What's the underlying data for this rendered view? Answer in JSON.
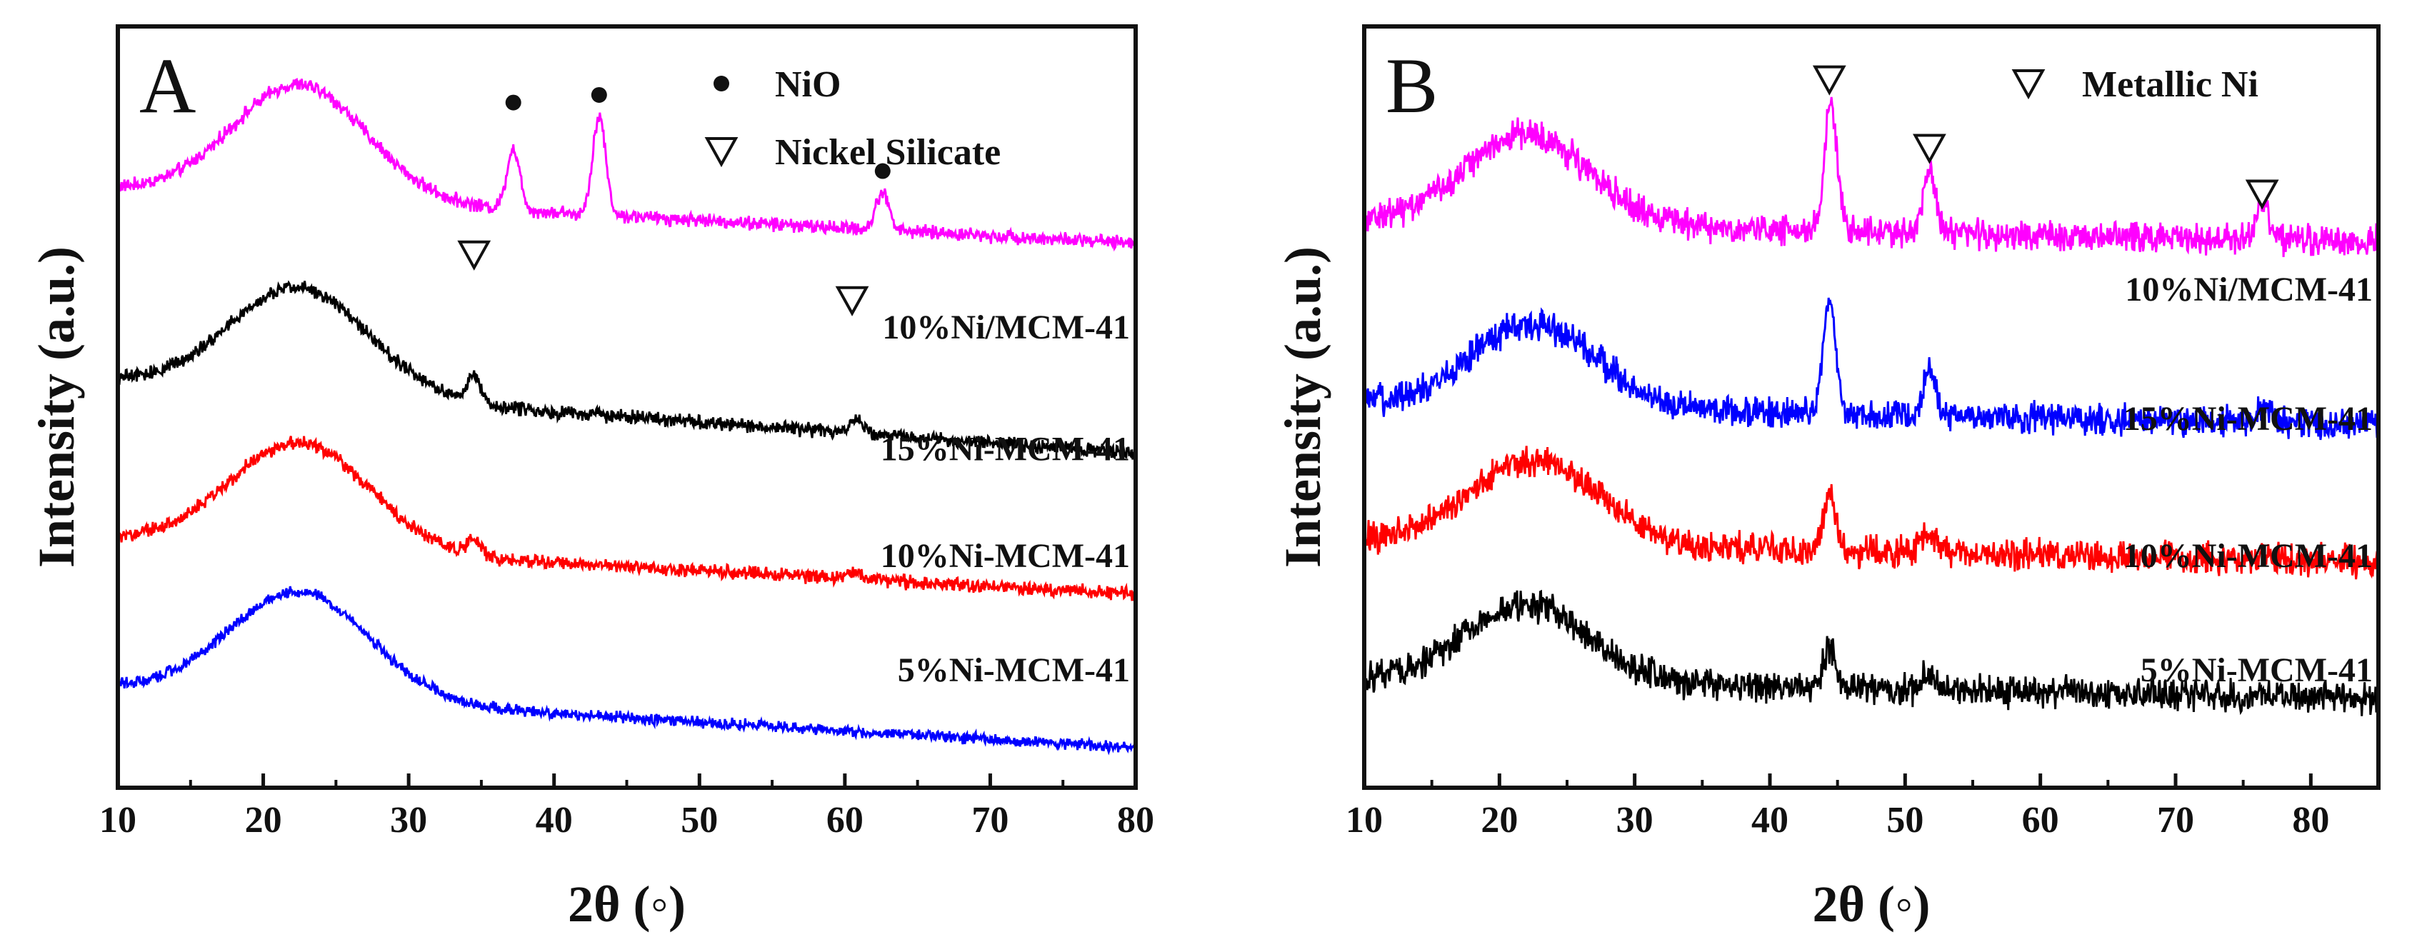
{
  "chart_data": [
    {
      "type": "line",
      "panel_label": "A",
      "xlabel": "2θ (◦)",
      "ylabel": "Intensity (a.u.)",
      "xlim": [
        10,
        80
      ],
      "ylim": [
        0,
        100
      ],
      "xticks": [
        10,
        20,
        30,
        40,
        50,
        60,
        70,
        80
      ],
      "yticks_shown": false,
      "grid": false,
      "legend": [
        {
          "marker": "dot",
          "label": "NiO"
        },
        {
          "marker": "triangle-down",
          "label": "Nickel Silicate"
        }
      ],
      "series": [
        {
          "name": "10%Ni/MCM-41",
          "color": "#ff00ff",
          "offset": 72,
          "baseline": 11,
          "hump": {
            "center": 22.5,
            "width": 4.6,
            "height": 15
          },
          "peaks": [
            {
              "x": 37.2,
              "h": 8
            },
            {
              "x": 43.1,
              "h": 13
            },
            {
              "x": 62.6,
              "h": 5
            }
          ],
          "tail": 0.5,
          "noise": 1.1
        },
        {
          "name": "15%Ni-MCM-41",
          "color": "#000000",
          "offset": 45,
          "baseline": 14,
          "hump": {
            "center": 22.5,
            "width": 4.8,
            "height": 14
          },
          "peaks": [
            {
              "x": 34.5,
              "h": 3.5
            },
            {
              "x": 60.8,
              "h": 2
            }
          ],
          "tail": 1.0,
          "noise": 1.1
        },
        {
          "name": "10%Ni-MCM-41",
          "color": "#ff0000",
          "offset": 26,
          "baseline": 11,
          "hump": {
            "center": 22.5,
            "width": 4.8,
            "height": 14
          },
          "peaks": [
            {
              "x": 34.5,
              "h": 2
            },
            {
              "x": 60.6,
              "h": 1
            }
          ],
          "tail": 0.6,
          "noise": 1.1
        },
        {
          "name": "5%Ni-MCM-41",
          "color": "#0000ff",
          "offset": 6,
          "baseline": 12,
          "hump": {
            "center": 22.5,
            "width": 4.8,
            "height": 14
          },
          "peaks": [],
          "tail": 0.8,
          "noise": 0.9
        }
      ],
      "annotations": [
        {
          "marker": "dot",
          "x": 37.2,
          "y": 90
        },
        {
          "marker": "dot",
          "x": 43.1,
          "y": 91
        },
        {
          "marker": "dot",
          "x": 62.6,
          "y": 81
        },
        {
          "marker": "triangle-down",
          "x": 34.5,
          "y": 70
        },
        {
          "marker": "triangle-down",
          "x": 60.5,
          "y": 64
        }
      ]
    },
    {
      "type": "line",
      "panel_label": "B",
      "xlabel": "2θ (◦)",
      "ylabel": "Intensity (a.u.)",
      "xlim": [
        10,
        85
      ],
      "ylim": [
        0,
        100
      ],
      "xticks": [
        10,
        20,
        30,
        40,
        50,
        60,
        70,
        80
      ],
      "yticks_shown": false,
      "grid": false,
      "legend": [
        {
          "marker": "triangle-down",
          "label": "Metallic Ni"
        }
      ],
      "series": [
        {
          "name": "10%Ni/MCM-41",
          "color": "#ff00ff",
          "offset": 72,
          "baseline": 4,
          "hump": {
            "center": 22,
            "width": 4.6,
            "height": 12
          },
          "peaks": [
            {
              "x": 44.5,
              "h": 17
            },
            {
              "x": 51.8,
              "h": 9
            },
            {
              "x": 76.4,
              "h": 5
            }
          ],
          "tail": 0.3,
          "noise": 2.5
        },
        {
          "name": "15%Ni-MCM-41",
          "color": "#0000ff",
          "offset": 48,
          "baseline": 4,
          "hump": {
            "center": 22.5,
            "width": 4.6,
            "height": 11
          },
          "peaks": [
            {
              "x": 44.4,
              "h": 15
            },
            {
              "x": 51.8,
              "h": 6
            },
            {
              "x": 76.4,
              "h": 2
            }
          ],
          "tail": 0.3,
          "noise": 2.5
        },
        {
          "name": "10%Ni-MCM-41",
          "color": "#ff0000",
          "offset": 30,
          "baseline": 4,
          "hump": {
            "center": 22.5,
            "width": 4.8,
            "height": 11
          },
          "peaks": [
            {
              "x": 44.4,
              "h": 7
            },
            {
              "x": 51.7,
              "h": 3
            }
          ],
          "tail": 0.3,
          "noise": 2.5
        },
        {
          "name": "5%Ni-MCM-41",
          "color": "#000000",
          "offset": 12,
          "baseline": 4,
          "hump": {
            "center": 22,
            "width": 4.6,
            "height": 10
          },
          "peaks": [
            {
              "x": 44.4,
              "h": 5
            },
            {
              "x": 51.7,
              "h": 2
            }
          ],
          "tail": 0.3,
          "noise": 2.5
        }
      ],
      "annotations": [
        {
          "marker": "triangle-down",
          "x": 44.4,
          "y": 93
        },
        {
          "marker": "triangle-down",
          "x": 51.8,
          "y": 84
        },
        {
          "marker": "triangle-down",
          "x": 76.4,
          "y": 78
        }
      ]
    }
  ]
}
